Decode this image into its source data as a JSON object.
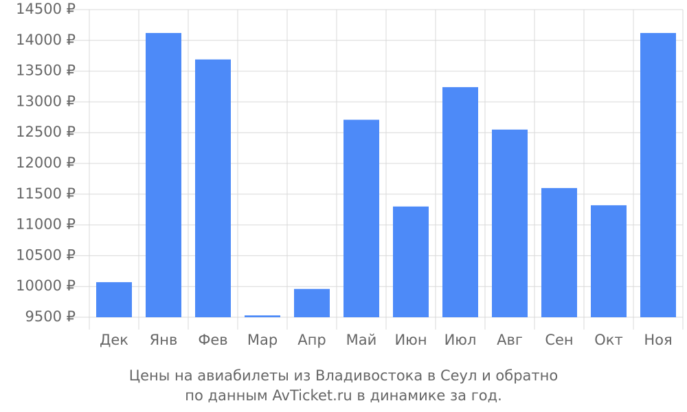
{
  "chart_data": {
    "type": "bar",
    "caption": [
      "Цены на авиабилеты из Владивостока в Сеул и обратно",
      "по данным AvTicket.ru в динамике за год."
    ],
    "categories": [
      "Дек",
      "Янв",
      "Фев",
      "Мар",
      "Апр",
      "Май",
      "Июн",
      "Июл",
      "Авг",
      "Сен",
      "Окт",
      "Ноя"
    ],
    "values": [
      10070,
      14120,
      13690,
      9530,
      9960,
      12710,
      11300,
      13240,
      12550,
      11600,
      11320,
      14120
    ],
    "color": "#4d8af8",
    "ylim": [
      9500,
      14500
    ],
    "yticks": [
      {
        "value": 9500,
        "label": "9500 ₽"
      },
      {
        "value": 10000,
        "label": "10000 ₽"
      },
      {
        "value": 10500,
        "label": "10500 ₽"
      },
      {
        "value": 11000,
        "label": "11000 ₽"
      },
      {
        "value": 11500,
        "label": "11500 ₽"
      },
      {
        "value": 12000,
        "label": "12000 ₽"
      },
      {
        "value": 12500,
        "label": "12500 ₽"
      },
      {
        "value": 13000,
        "label": "13000 ₽"
      },
      {
        "value": 13500,
        "label": "13500 ₽"
      },
      {
        "value": 14000,
        "label": "14000 ₽"
      },
      {
        "value": 14500,
        "label": "14500 ₽"
      }
    ],
    "grid": true
  }
}
